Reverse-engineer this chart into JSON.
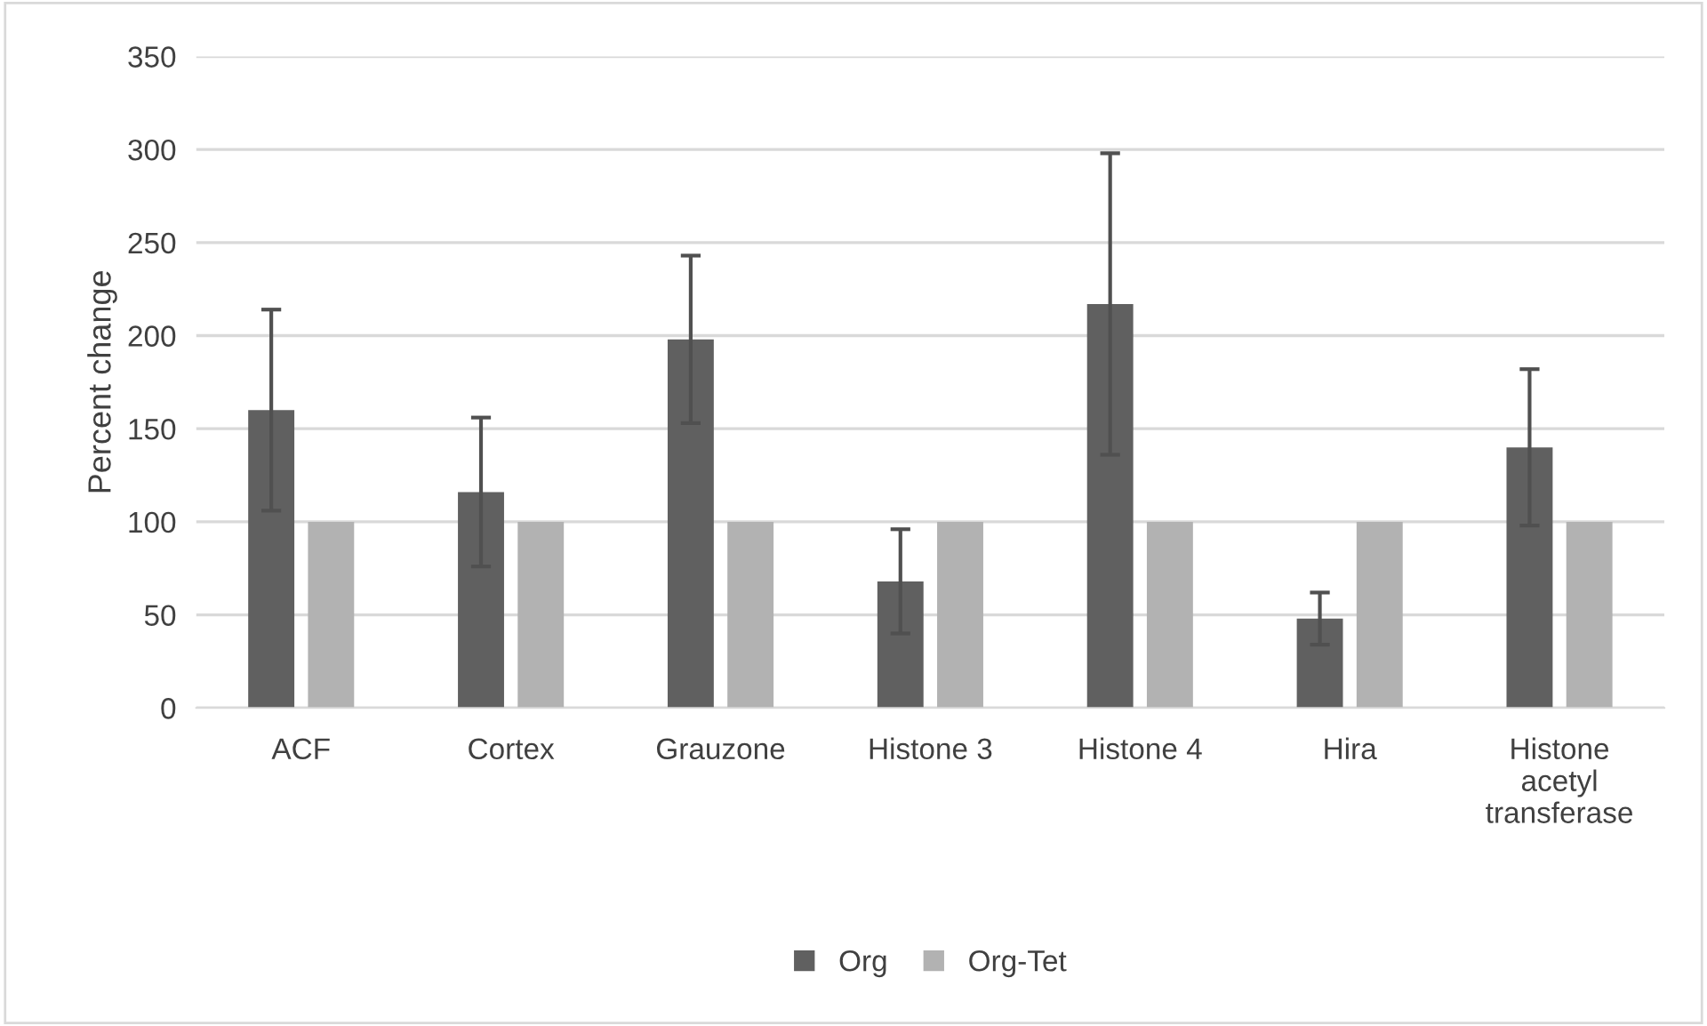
{
  "chart_data": {
    "type": "bar",
    "ylabel": "Percent change",
    "categories": [
      "ACF",
      "Cortex",
      "Grauzone",
      "Histone 3",
      "Histone 4",
      "Hira",
      "Histone\nacetyl\ntransferase"
    ],
    "series": [
      {
        "name": "Org",
        "color": "#606060",
        "values": [
          160,
          116,
          198,
          68,
          217,
          48,
          140
        ],
        "errors": [
          54,
          40,
          45,
          28,
          81,
          14,
          42
        ]
      },
      {
        "name": "Org-Tet",
        "color": "#b2b2b2",
        "values": [
          100,
          100,
          100,
          100,
          100,
          100,
          100
        ]
      }
    ],
    "ylim": [
      0,
      350
    ],
    "yticks": [
      0,
      50,
      100,
      150,
      200,
      250,
      300,
      350
    ],
    "grid": "y",
    "legend": "bottom"
  }
}
